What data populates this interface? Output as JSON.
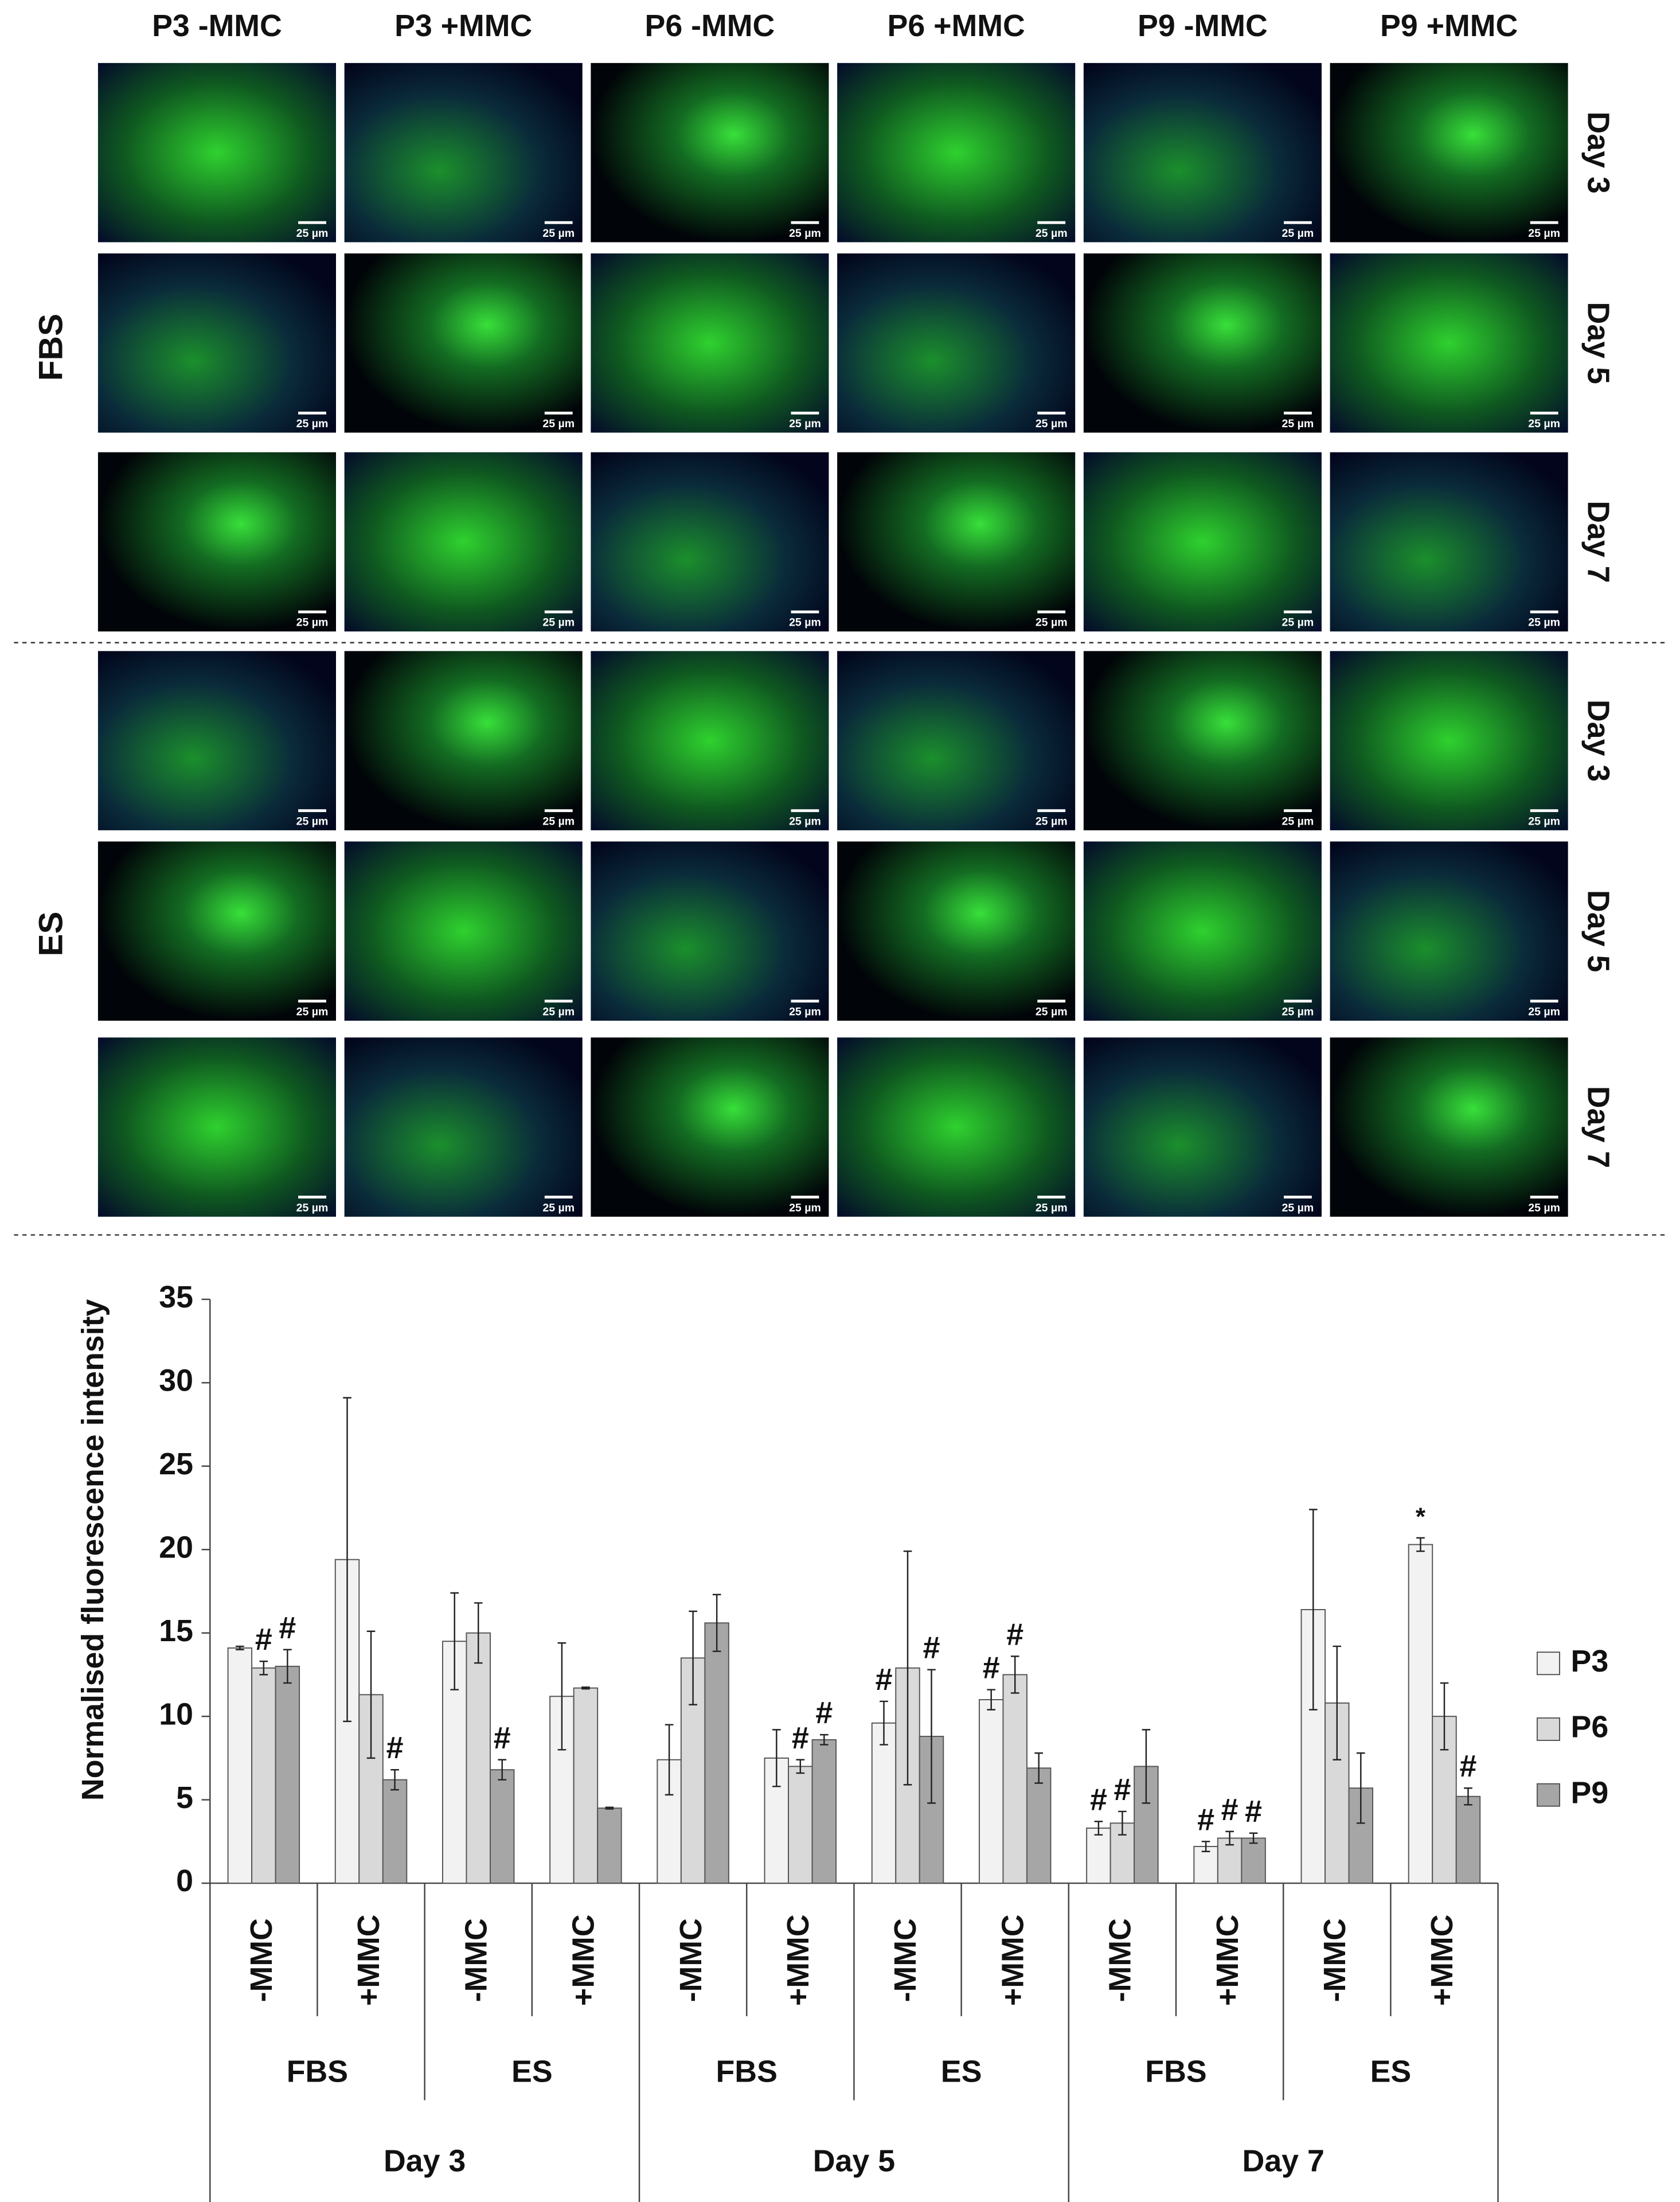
{
  "panels": {
    "columns": [
      "P3 -MMC",
      "P3 +MMC",
      "P6 -MMC",
      "P6 +MMC",
      "P9 -MMC",
      "P9 +MMC"
    ],
    "blocks": [
      {
        "label": "FBS",
        "rows": [
          "Day 3",
          "Day 5",
          "Day 7"
        ]
      },
      {
        "label": "ES",
        "rows": [
          "Day 3",
          "Day 5",
          "Day 7"
        ]
      }
    ],
    "scale_bar": "25 µm"
  },
  "chart_data": {
    "type": "bar",
    "y_label": "Normalised fluorescence intensity",
    "categories": [
      "-MMC",
      "+MMC",
      "-MMC",
      "+MMC",
      "-MMC",
      "+MMC",
      "-MMC",
      "+MMC",
      "-MMC",
      "+MMC",
      "-MMC",
      "+MMC"
    ],
    "media": [
      "FBS",
      "ES",
      "FBS",
      "ES",
      "FBS",
      "ES"
    ],
    "days": [
      "Day 3",
      "Day 5",
      "Day 7"
    ],
    "ylim": [
      0,
      35
    ],
    "yticks": [
      0,
      5,
      10,
      15,
      20,
      25,
      30,
      35
    ],
    "legend": "right",
    "series": [
      {
        "name": "P3",
        "color": "#f2f2f2",
        "values": [
          14.1,
          19.4,
          14.5,
          11.2,
          7.4,
          7.5,
          9.6,
          11.0,
          3.3,
          2.2,
          16.4,
          20.3
        ],
        "errors": [
          0.1,
          9.7,
          2.9,
          3.2,
          2.1,
          1.7,
          1.3,
          0.6,
          0.4,
          0.3,
          6.0,
          0.4
        ],
        "markers": [
          null,
          null,
          null,
          null,
          null,
          null,
          "#",
          "#",
          "#",
          "#",
          null,
          "*"
        ]
      },
      {
        "name": "P6",
        "color": "#d9d9d9",
        "values": [
          12.9,
          11.3,
          15.0,
          11.7,
          13.5,
          7.0,
          12.9,
          12.5,
          3.6,
          2.7,
          10.8,
          10.0
        ],
        "errors": [
          0.4,
          3.8,
          1.8,
          0.05,
          2.8,
          0.4,
          7.0,
          1.1,
          0.7,
          0.4,
          3.4,
          2.0
        ],
        "markers": [
          "#",
          null,
          null,
          null,
          null,
          "#",
          null,
          "#",
          "#",
          "#",
          null,
          null
        ]
      },
      {
        "name": "P9",
        "color": "#a6a6a6",
        "values": [
          13.0,
          6.2,
          6.8,
          4.5,
          15.6,
          8.6,
          8.8,
          6.9,
          7.0,
          2.7,
          5.7,
          5.2
        ],
        "errors": [
          1.0,
          0.6,
          0.6,
          0.05,
          1.7,
          0.3,
          4.0,
          0.9,
          2.2,
          0.3,
          2.1,
          0.5
        ],
        "markers": [
          "#",
          "#",
          "#",
          null,
          null,
          "#",
          "#",
          null,
          null,
          "#",
          null,
          "#"
        ]
      }
    ]
  }
}
